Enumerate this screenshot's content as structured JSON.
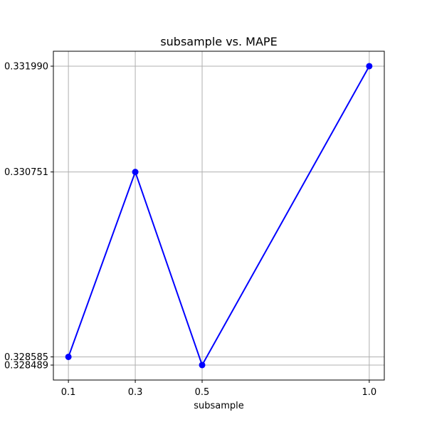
{
  "chart_data": {
    "type": "line",
    "title": "subsample vs. MAPE",
    "xlabel": "subsample",
    "ylabel": "",
    "x": [
      0.1,
      0.3,
      0.5,
      1.0
    ],
    "series": [
      {
        "values": [
          0.328585,
          0.330751,
          0.328489,
          0.33199
        ],
        "color": "#0000ff",
        "marker": "circle"
      }
    ],
    "xticks": [
      "0.1",
      "0.3",
      "0.5",
      "1.0"
    ],
    "yticks": [
      "0.328489",
      "0.328585",
      "0.330751",
      "0.331990"
    ],
    "xlim": [
      0.055,
      1.045
    ],
    "ylim": [
      0.3283139,
      0.332165
    ],
    "grid": true,
    "legend": "none"
  }
}
